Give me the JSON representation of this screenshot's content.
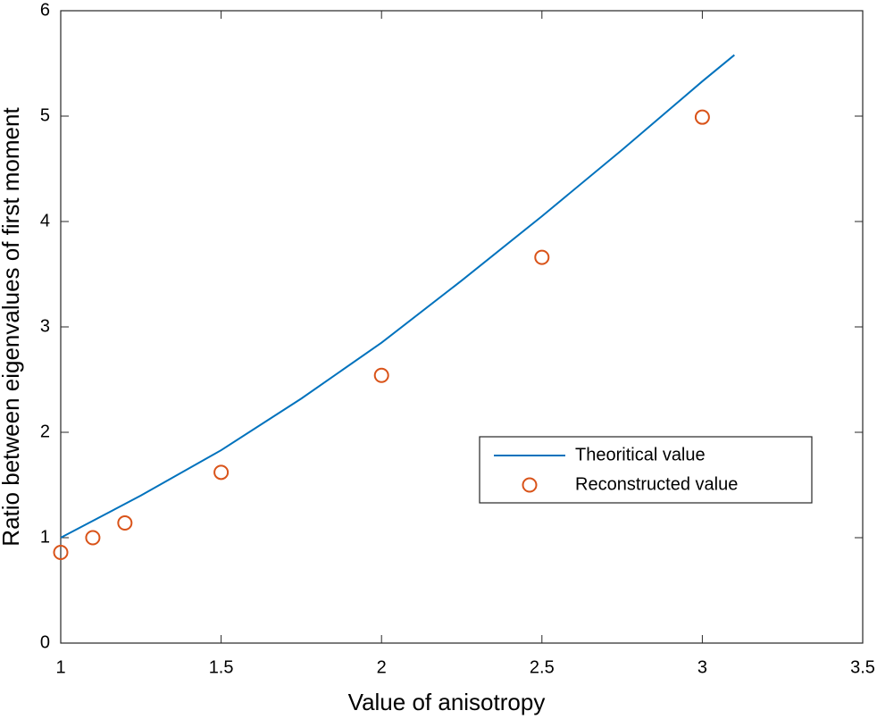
{
  "chart_data": {
    "type": "line",
    "xlabel": "Value of anisotropy",
    "ylabel": "Ratio between eigenvalues of first moment",
    "xlim": [
      1,
      3.5
    ],
    "xticks": [
      1,
      1.5,
      2,
      2.5,
      3,
      3.5
    ],
    "ylim": [
      0,
      6
    ],
    "yticks": [
      0,
      1,
      2,
      3,
      4,
      5,
      6
    ],
    "grid": false,
    "legend": "lower-right",
    "series": [
      {
        "name": "Theoritical value",
        "type": "line",
        "color": "#0072bd",
        "x": [
          1.0,
          1.25,
          1.5,
          1.75,
          2.0,
          2.25,
          2.5,
          2.75,
          3.0,
          3.1
        ],
        "values": [
          1.0,
          1.4,
          1.83,
          2.32,
          2.85,
          3.44,
          4.05,
          4.68,
          5.33,
          5.58
        ]
      },
      {
        "name": "Reconstructed value",
        "type": "scatter",
        "color": "#d95319",
        "x": [
          1.0,
          1.1,
          1.2,
          1.5,
          2.0,
          2.5,
          3.0
        ],
        "values": [
          0.86,
          1.0,
          1.14,
          1.62,
          2.54,
          3.66,
          4.99
        ]
      }
    ]
  }
}
